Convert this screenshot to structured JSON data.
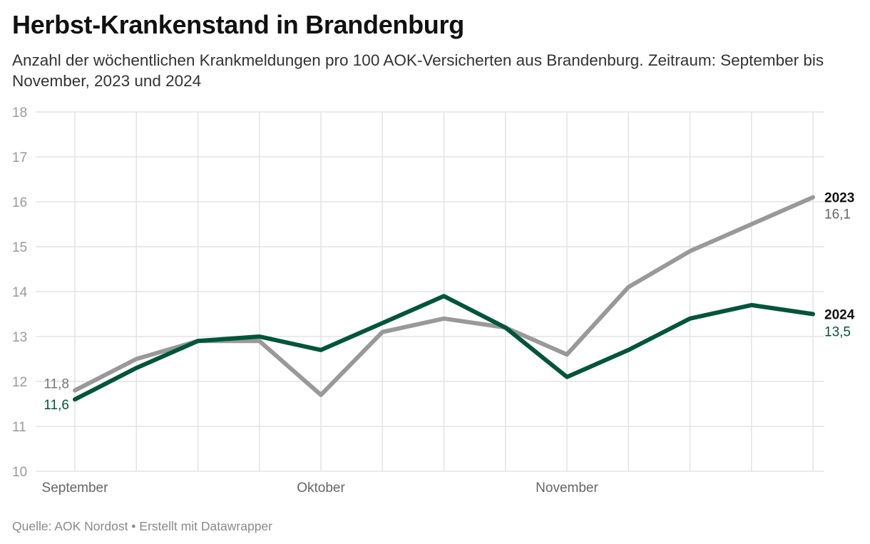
{
  "header": {
    "title": "Herbst-Krankenstand in Brandenburg",
    "subtitle": "Anzahl der wöchentlichen Krankmeldungen pro 100 AOK-Versicherten aus Brandenburg. Zeitraum: September bis November, 2023 und 2024"
  },
  "footer": {
    "source": "Quelle: AOK Nordost • Erstellt mit Datawrapper"
  },
  "colors": {
    "series_2023": "#999999",
    "series_2024": "#00553b",
    "grid": "#e3e3e3",
    "axis_text": "#9a9a9a"
  },
  "chart_data": {
    "type": "line",
    "title": "Herbst-Krankenstand in Brandenburg",
    "x": [
      1,
      2,
      3,
      4,
      5,
      6,
      7,
      8,
      9,
      10,
      11,
      12,
      13
    ],
    "x_tick_labels": [
      {
        "index": 1,
        "label": "September"
      },
      {
        "index": 5,
        "label": "Oktober"
      },
      {
        "index": 9,
        "label": "November"
      }
    ],
    "ylim": [
      10,
      18
    ],
    "yticks": [
      10,
      11,
      12,
      13,
      14,
      15,
      16,
      17,
      18
    ],
    "grid": true,
    "series": [
      {
        "name": "2023",
        "values": [
          11.8,
          12.5,
          12.9,
          12.9,
          11.7,
          13.1,
          13.4,
          13.2,
          12.6,
          14.1,
          14.9,
          15.5,
          16.1
        ],
        "start_label": "11,8",
        "end_label": "16,1"
      },
      {
        "name": "2024",
        "values": [
          11.6,
          12.3,
          12.9,
          13.0,
          12.7,
          13.3,
          13.9,
          13.2,
          12.1,
          12.7,
          13.4,
          13.7,
          13.5
        ],
        "start_label": "11,6",
        "end_label": "13,5"
      }
    ]
  }
}
